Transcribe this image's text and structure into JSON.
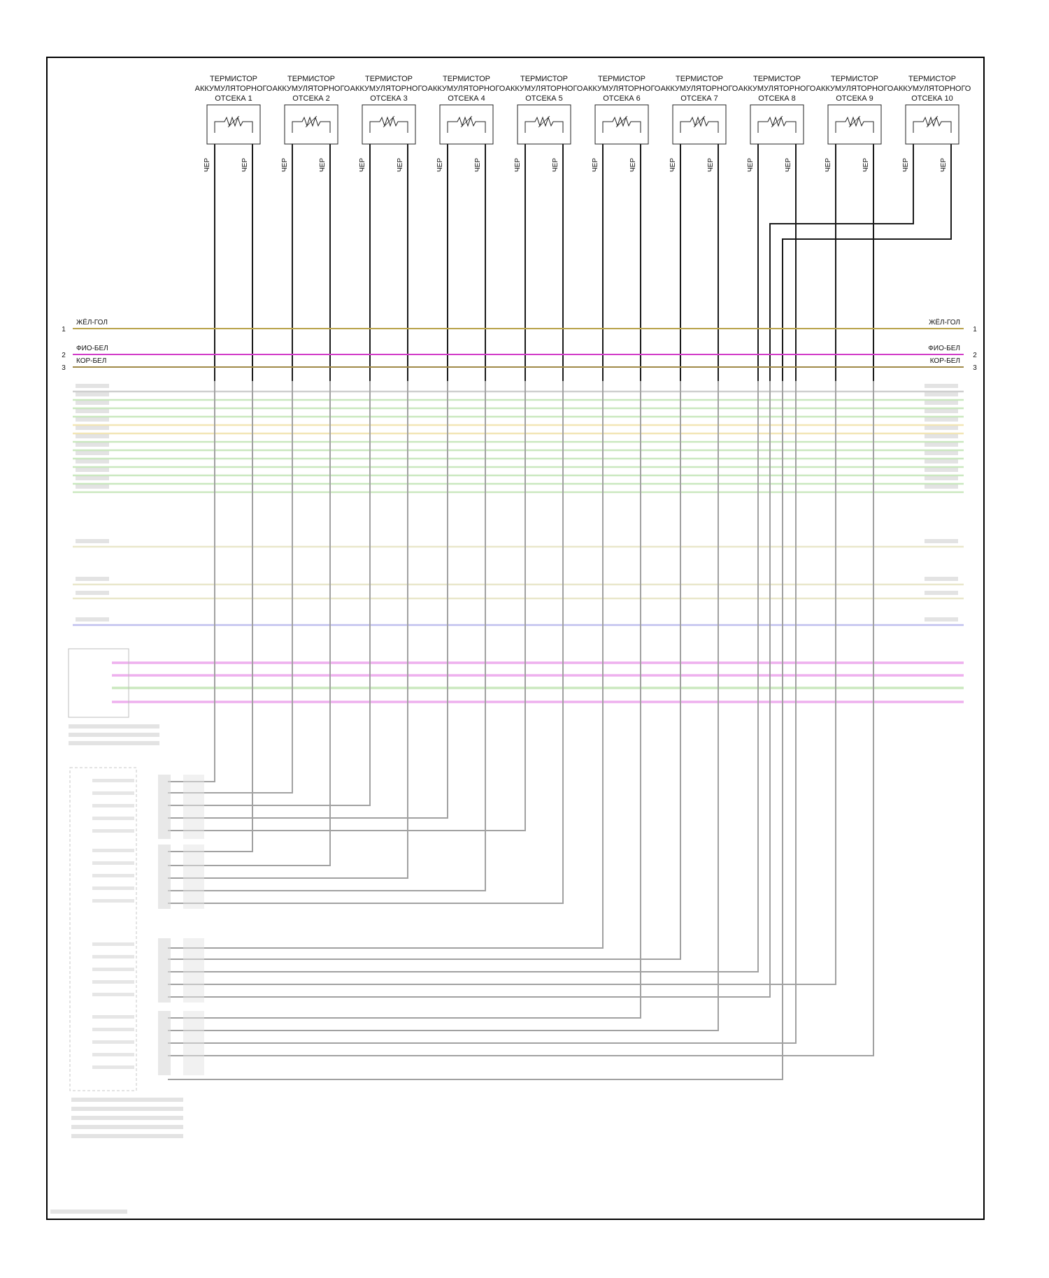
{
  "thermistors": [
    {
      "title": "ТЕРМИСТОР",
      "subtitle": "АККУМУЛЯТОРНОГО",
      "bay": "ОТСЕКА 1",
      "wire_left": "ЧЕР",
      "wire_right": "ЧЕР"
    },
    {
      "title": "ТЕРМИСТОР",
      "subtitle": "АККУМУЛЯТОРНОГО",
      "bay": "ОТСЕКА 2",
      "wire_left": "ЧЕР",
      "wire_right": "ЧЕР"
    },
    {
      "title": "ТЕРМИСТОР",
      "subtitle": "АККУМУЛЯТОРНОГО",
      "bay": "ОТСЕКА 3",
      "wire_left": "ЧЕР",
      "wire_right": "ЧЕР"
    },
    {
      "title": "ТЕРМИСТОР",
      "subtitle": "АККУМУЛЯТОРНОГО",
      "bay": "ОТСЕКА 4",
      "wire_left": "ЧЕР",
      "wire_right": "ЧЕР"
    },
    {
      "title": "ТЕРМИСТОР",
      "subtitle": "АККУМУЛЯТОРНОГО",
      "bay": "ОТСЕКА 5",
      "wire_left": "ЧЕР",
      "wire_right": "ЧЕР"
    },
    {
      "title": "ТЕРМИСТОР",
      "subtitle": "АККУМУЛЯТОРНОГО",
      "bay": "ОТСЕКА 6",
      "wire_left": "ЧЕР",
      "wire_right": "ЧЕР"
    },
    {
      "title": "ТЕРМИСТОР",
      "subtitle": "АККУМУЛЯТОРНОГО",
      "bay": "ОТСЕКА 7",
      "wire_left": "ЧЕР",
      "wire_right": "ЧЕР"
    },
    {
      "title": "ТЕРМИСТОР",
      "subtitle": "АККУМУЛЯТОРНОГО",
      "bay": "ОТСЕКА 8",
      "wire_left": "ЧЕР",
      "wire_right": "ЧЕР"
    },
    {
      "title": "ТЕРМИСТОР",
      "subtitle": "АККУМУЛЯТОРНОГО",
      "bay": "ОТСЕКА 9",
      "wire_left": "ЧЕР",
      "wire_right": "ЧЕР"
    },
    {
      "title": "ТЕРМИСТОР",
      "subtitle": "АККУМУЛЯТОРНОГО",
      "bay": "ОТСЕКА 10",
      "wire_left": "ЧЕР",
      "wire_right": "ЧЕР"
    }
  ],
  "bus_lines": [
    {
      "num": "1",
      "label": "ЖЁЛ-ГОЛ",
      "color": "#b8a24a"
    },
    {
      "num": "2",
      "label": "ФИО-БЕЛ",
      "color": "#d23cc8"
    },
    {
      "num": "3",
      "label": "КОР-БЕЛ",
      "color": "#a08a48"
    }
  ],
  "colors": {
    "frame": "#000000",
    "wire": "#1a1a1a",
    "blurred_green": "#9fd68a",
    "blurred_yellow": "#e8d27a",
    "blurred_olive": "#d8d4a0",
    "blurred_blue": "#8a8ae0",
    "blurred_magenta": "#e070e0",
    "blurred_gray": "#a8a8a8"
  }
}
